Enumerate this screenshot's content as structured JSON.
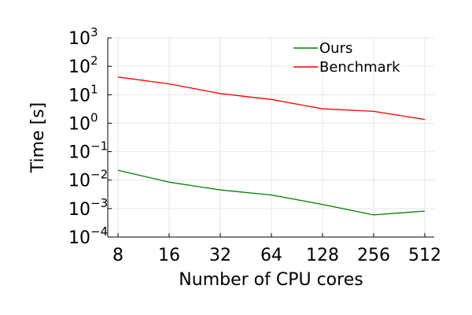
{
  "chart_data": {
    "type": "line",
    "x": [
      8,
      16,
      32,
      64,
      128,
      256,
      512
    ],
    "x_tick_labels": [
      "8",
      "16",
      "32",
      "64",
      "128",
      "256",
      "512"
    ],
    "x_scale": "log2",
    "y_scale": "log10",
    "ylim_exponents": [
      -4,
      3
    ],
    "y_tick_base": "10",
    "y_tick_exponents": [
      "-4",
      "-3",
      "-2",
      "-1",
      "0",
      "1",
      "2",
      "3"
    ],
    "xlabel": "Number of CPU cores",
    "ylabel": "Time [s]",
    "grid": true,
    "legend_position": "top-right",
    "series": [
      {
        "name": "Ours",
        "color": "#008000",
        "values": [
          0.022,
          0.0085,
          0.0045,
          0.003,
          0.0014,
          0.0006,
          0.00082
        ]
      },
      {
        "name": "Benchmark",
        "color": "#ff0000",
        "values": [
          42,
          24,
          11,
          6.8,
          3.2,
          2.6,
          1.35
        ]
      }
    ]
  }
}
